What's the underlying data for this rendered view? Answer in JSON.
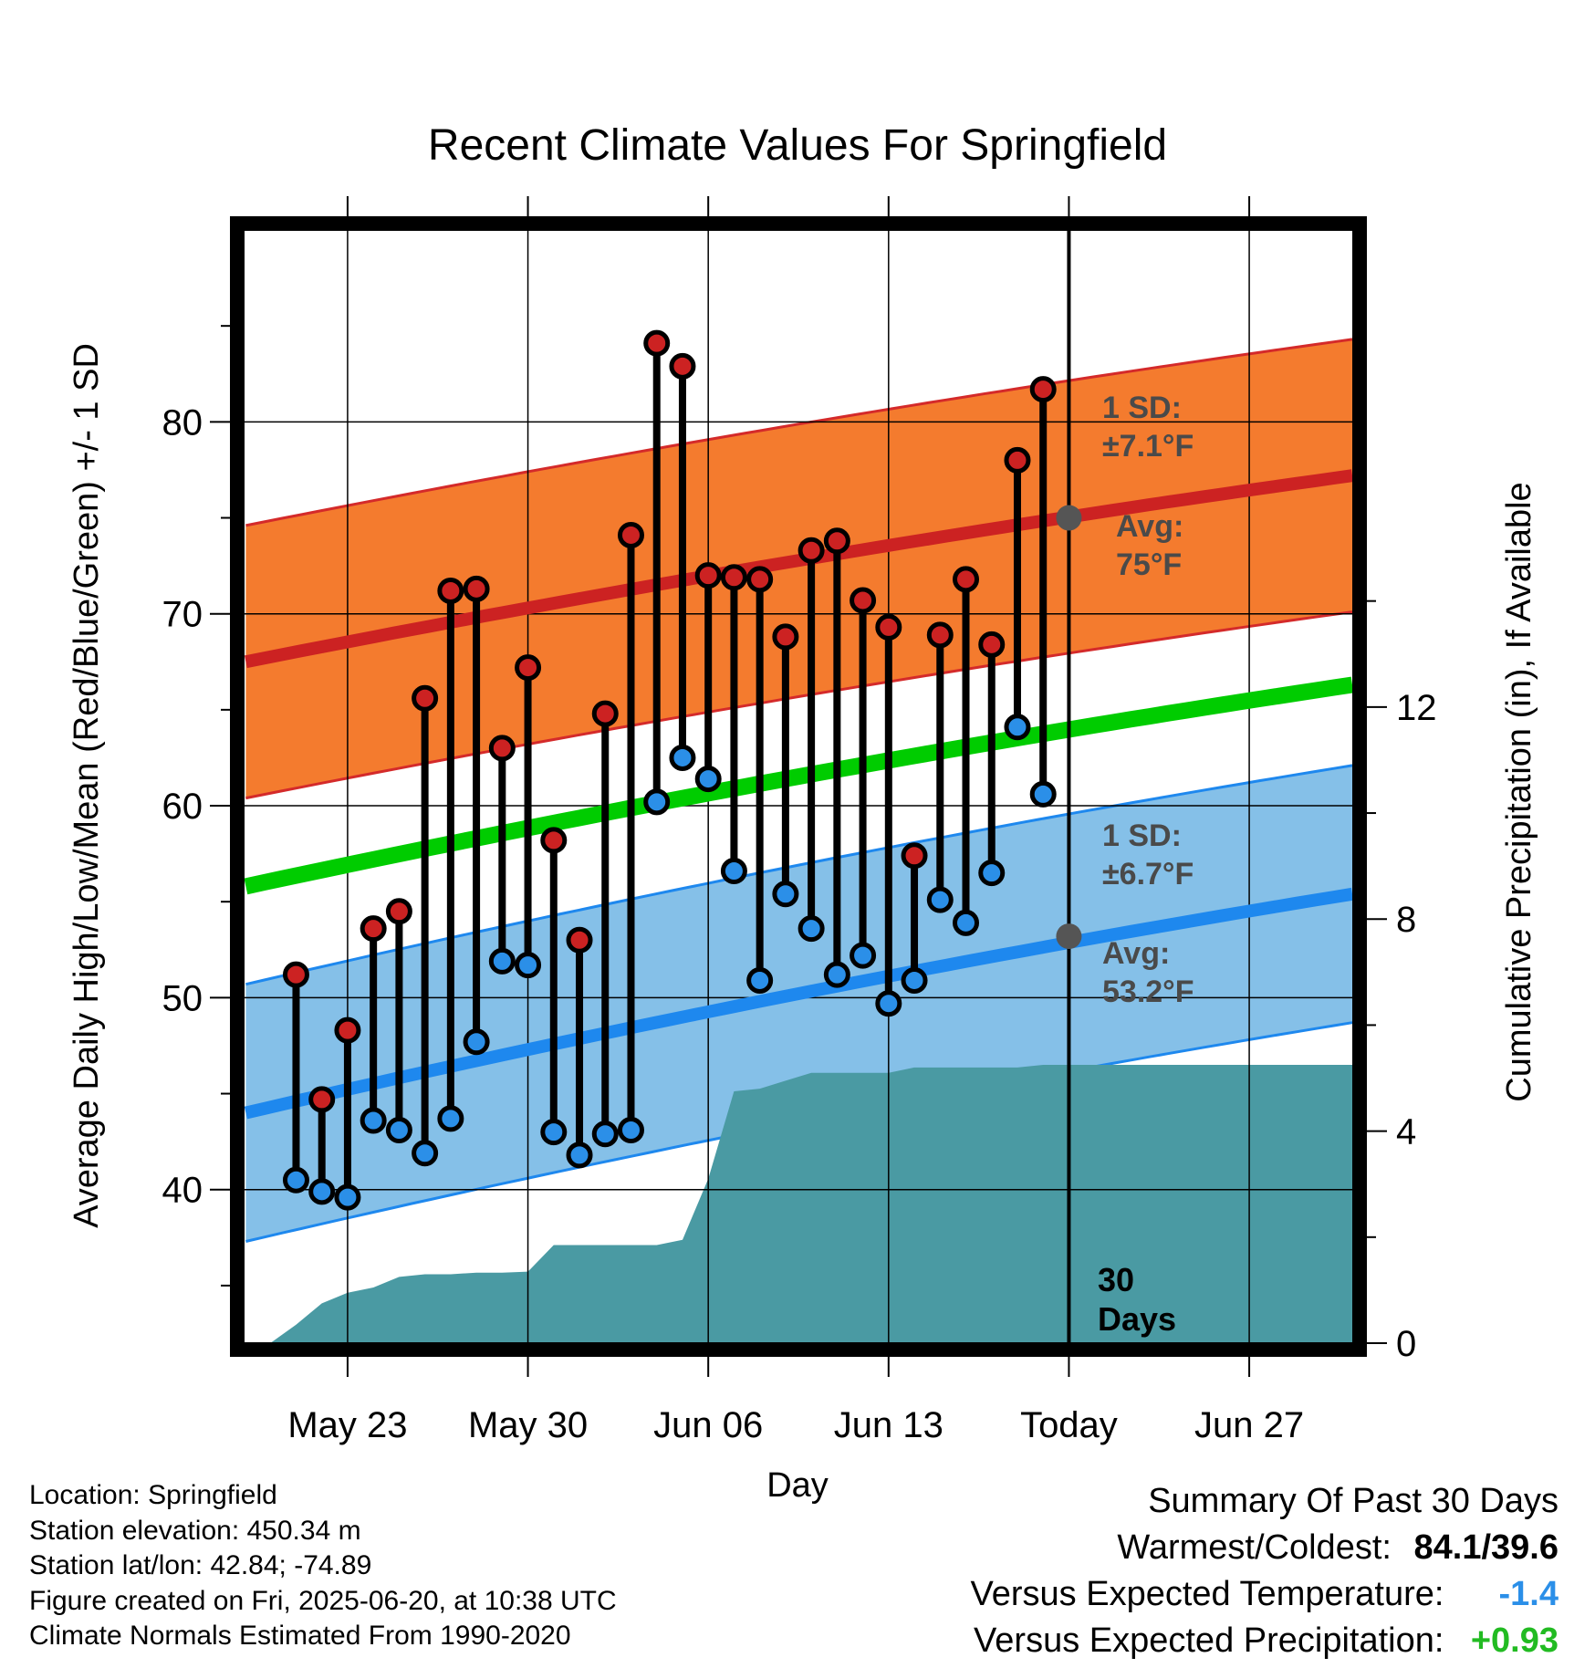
{
  "title": "Recent Climate Values For Springfield",
  "chart_data": {
    "type": "line",
    "title": "Recent Climate Values For Springfield",
    "xlabel": "Day",
    "ylabel_left": "Average Daily High/Low/Mean (Red/Blue/Green) +/- 1 SD",
    "ylabel_right": "Cumulative Precipitation (in), If Available",
    "x_ticks": [
      "May 23",
      "May 30",
      "Jun 06",
      "Jun 13",
      "Today",
      "Jun 27"
    ],
    "y_ticks_left": [
      40,
      50,
      60,
      70,
      80
    ],
    "y_ticks_right": [
      0,
      4,
      8,
      12
    ],
    "ylim_left": [
      32,
      90
    ],
    "ylim_right": [
      0,
      21
    ],
    "xlim": [
      "May 19",
      "Jul 01"
    ],
    "dates": [
      "May 21",
      "May 22",
      "May 23",
      "May 24",
      "May 25",
      "May 26",
      "May 27",
      "May 28",
      "May 29",
      "May 30",
      "May 31",
      "Jun 01",
      "Jun 02",
      "Jun 03",
      "Jun 04",
      "Jun 05",
      "Jun 06",
      "Jun 07",
      "Jun 08",
      "Jun 09",
      "Jun 10",
      "Jun 11",
      "Jun 12",
      "Jun 13",
      "Jun 14",
      "Jun 15",
      "Jun 16",
      "Jun 17",
      "Jun 18",
      "Jun 19"
    ],
    "highs": [
      51.2,
      44.7,
      48.3,
      53.6,
      54.5,
      65.6,
      71.2,
      71.3,
      63.0,
      67.2,
      58.2,
      53.0,
      64.8,
      74.1,
      84.1,
      82.9,
      72.0,
      71.9,
      71.8,
      68.8,
      73.3,
      73.8,
      70.7,
      69.3,
      57.4,
      68.9,
      71.8,
      68.4,
      78.0,
      81.7
    ],
    "lows": [
      40.5,
      39.9,
      39.6,
      43.6,
      43.1,
      41.9,
      43.7,
      47.7,
      51.9,
      51.7,
      43.0,
      41.8,
      42.9,
      43.1,
      60.2,
      62.5,
      61.4,
      56.6,
      50.9,
      55.4,
      53.6,
      51.2,
      52.2,
      49.7,
      50.9,
      55.1,
      53.9,
      56.5,
      64.1,
      60.6
    ],
    "normal_high": {
      "start": 67.5,
      "end": 77.2,
      "sd": 7.1,
      "today_avg": 75
    },
    "normal_low": {
      "start": 44.0,
      "end": 55.4,
      "sd": 6.7,
      "today_avg": 53.2
    },
    "normal_mean": {
      "start": 55.8,
      "end": 66.3
    },
    "cumulative_precip": [
      {
        "date": "May 19",
        "value": 0.0
      },
      {
        "date": "May 20",
        "value": 0.0
      },
      {
        "date": "May 21",
        "value": 0.35
      },
      {
        "date": "May 22",
        "value": 0.75
      },
      {
        "date": "May 23",
        "value": 0.95
      },
      {
        "date": "May 24",
        "value": 1.05
      },
      {
        "date": "May 25",
        "value": 1.25
      },
      {
        "date": "May 26",
        "value": 1.3
      },
      {
        "date": "May 27",
        "value": 1.3
      },
      {
        "date": "May 28",
        "value": 1.33
      },
      {
        "date": "May 29",
        "value": 1.33
      },
      {
        "date": "May 30",
        "value": 1.35
      },
      {
        "date": "May 31",
        "value": 1.85
      },
      {
        "date": "Jun 01",
        "value": 1.85
      },
      {
        "date": "Jun 02",
        "value": 1.85
      },
      {
        "date": "Jun 03",
        "value": 1.85
      },
      {
        "date": "Jun 04",
        "value": 1.85
      },
      {
        "date": "Jun 05",
        "value": 1.95
      },
      {
        "date": "Jun 06",
        "value": 3.1
      },
      {
        "date": "Jun 07",
        "value": 4.75
      },
      {
        "date": "Jun 08",
        "value": 4.8
      },
      {
        "date": "Jun 09",
        "value": 4.95
      },
      {
        "date": "Jun 10",
        "value": 5.1
      },
      {
        "date": "Jun 11",
        "value": 5.1
      },
      {
        "date": "Jun 12",
        "value": 5.1
      },
      {
        "date": "Jun 13",
        "value": 5.1
      },
      {
        "date": "Jun 14",
        "value": 5.2
      },
      {
        "date": "Jun 15",
        "value": 5.2
      },
      {
        "date": "Jun 16",
        "value": 5.2
      },
      {
        "date": "Jun 17",
        "value": 5.2
      },
      {
        "date": "Jun 18",
        "value": 5.2
      },
      {
        "date": "Jun 19",
        "value": 5.25
      },
      {
        "date": "Jul 01",
        "value": 5.25
      }
    ],
    "annotations": {
      "high_sd_line1": "1 SD:",
      "high_sd_line2": "±7.1°F",
      "high_avg_line1": "Avg:",
      "high_avg_line2": "75°F",
      "low_sd_line1": "1 SD:",
      "low_sd_line2": "±6.7°F",
      "low_avg_line1": "Avg:",
      "low_avg_line2": "53.2°F",
      "days_line1": "30",
      "days_line2": "Days"
    },
    "colors": {
      "high_band": "#f47b2e",
      "high_band_edge": "#d42a2a",
      "high_line": "#cc2222",
      "low_band": "#85c0e8",
      "low_band_edge": "#1e88ee",
      "low_line": "#1e88ee",
      "mean_line": "#00cc00",
      "precip": "#4a9aa3",
      "high_dot": "#cc2222",
      "low_dot": "#2b8fe8",
      "marker": "#555555"
    }
  },
  "info": {
    "location": "Location: Springfield",
    "elevation": "Station elevation: 450.34 m",
    "latlon": "Station lat/lon: 42.84; -74.89",
    "created": "Figure created on Fri, 2025-06-20, at 10:38 UTC",
    "normals": "Climate Normals Estimated From 1990-2020"
  },
  "summary": {
    "heading": "Summary Of Past 30 Days",
    "warm_cold_label": "Warmest/Coldest:",
    "warm_cold_value": "84.1/39.6",
    "temp_label": "Versus Expected Temperature:",
    "temp_value": "-1.4",
    "temp_color": "#2b8fe8",
    "precip_label": "Versus Expected Precipitation:",
    "precip_value": "+0.93",
    "precip_color": "#22bb22"
  }
}
